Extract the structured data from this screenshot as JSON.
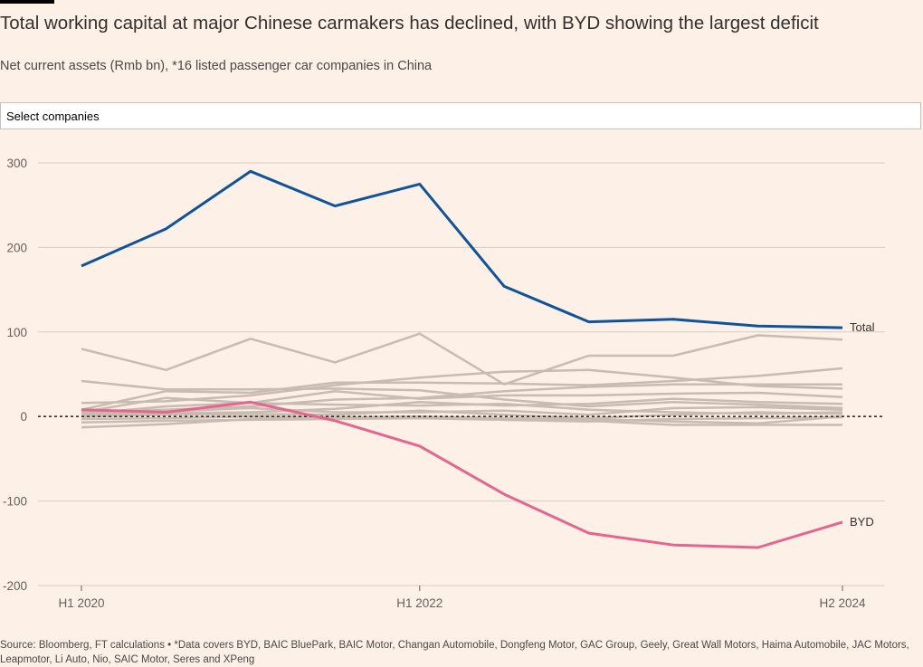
{
  "header": {
    "title": "Total working capital at major Chinese carmakers has declined, with BYD showing the largest deficit",
    "subtitle": "Net current assets (Rmb bn), *16 listed passenger car companies in China"
  },
  "controls": {
    "select_label": "Select companies"
  },
  "footer": {
    "source": "Source: Bloomberg, FT calculations • *Data covers BYD, BAIC BluePark, BAIC Motor, Changan Automobile, Dongfeng Motor, GAC Group, Geely, Great Wall Motors, Haima Automobile, JAC Motors, Leapmotor, Li Auto, Nio, SAIC Motor, Seres and XPeng"
  },
  "colors": {
    "background": "#fdf0e6",
    "total": "#0f5499",
    "byd": "#e5658f",
    "others": "#c8bbb2",
    "grid": "#d9cdc4",
    "zero_line": "#33302e"
  },
  "chart_data": {
    "type": "line",
    "x_ticks": [
      "H1 2020",
      "H1 2022",
      "H2 2024"
    ],
    "x_tick_index": [
      0,
      4,
      9
    ],
    "y_ticks": [
      300,
      200,
      100,
      0,
      -100,
      -200
    ],
    "ylim": [
      -200,
      300
    ],
    "grid": true,
    "zero_line": "dashed",
    "series": [
      {
        "name": "Total",
        "role": "total",
        "values": [
          178,
          222,
          290,
          249,
          275,
          154,
          112,
          115,
          107,
          105
        ]
      },
      {
        "name": "BYD",
        "role": "byd",
        "values": [
          8,
          5,
          17,
          -5,
          -35,
          -92,
          -138,
          -152,
          -155,
          -125
        ]
      },
      {
        "role": "other",
        "values": [
          80,
          55,
          92,
          64,
          98,
          38,
          72,
          72,
          96,
          91
        ]
      },
      {
        "role": "other",
        "values": [
          42,
          32,
          32,
          33,
          31,
          20,
          12,
          17,
          14,
          10
        ]
      },
      {
        "role": "other",
        "values": [
          16,
          18,
          25,
          37,
          46,
          53,
          55,
          46,
          36,
          33
        ]
      },
      {
        "role": "other",
        "values": [
          8,
          30,
          28,
          40,
          40,
          39,
          37,
          42,
          48,
          57
        ]
      },
      {
        "role": "other",
        "values": [
          3,
          12,
          16,
          30,
          21,
          25,
          25,
          27,
          28,
          23
        ]
      },
      {
        "role": "other",
        "values": [
          2,
          4,
          5,
          9,
          17,
          13,
          15,
          21,
          17,
          15
        ]
      },
      {
        "role": "other",
        "values": [
          5,
          22,
          16,
          14,
          13,
          15,
          8,
          5,
          3,
          5
        ]
      },
      {
        "role": "other",
        "values": [
          4,
          6,
          10,
          5,
          5,
          7,
          2,
          10,
          11,
          8
        ]
      },
      {
        "role": "other",
        "values": [
          0,
          2,
          3,
          2,
          7,
          2,
          -2,
          2,
          5,
          3
        ]
      },
      {
        "role": "other",
        "values": [
          -3,
          -2,
          0,
          -1,
          0,
          -2,
          -3,
          -6,
          -8,
          0
        ]
      },
      {
        "role": "other",
        "values": [
          -7,
          -5,
          -4,
          -3,
          -2,
          -4,
          -6,
          -3,
          -2,
          -1
        ]
      },
      {
        "role": "other",
        "values": [
          -13,
          -9,
          -3,
          -2,
          -1,
          -4,
          -5,
          -10,
          -10,
          -10
        ]
      },
      {
        "role": "other",
        "values": [
          6,
          8,
          12,
          20,
          22,
          30,
          35,
          38,
          38,
          38
        ]
      }
    ]
  }
}
